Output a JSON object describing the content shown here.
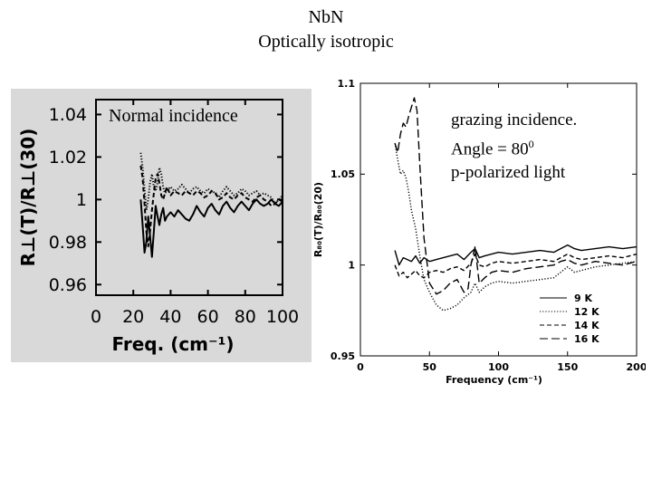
{
  "slide": {
    "title": "NbN",
    "subtitle": "Optically isotropic",
    "left_annotation": "Normal incidence",
    "right_annotation_line1": "grazing incidence.",
    "right_annotation_line2_prefix": "Angle = 80",
    "right_annotation_line2_sup": "0",
    "right_annotation_line3": "p-polarized light"
  },
  "chart_data": [
    {
      "type": "line",
      "title": "",
      "xlabel": "Freq. (cm⁻¹)",
      "ylabel": "R⊥(T)/R⊥(30)",
      "xlim": [
        0,
        100
      ],
      "ylim": [
        0.955,
        1.047
      ],
      "xticks": [
        0,
        20,
        40,
        60,
        80,
        100
      ],
      "yticks": [
        0.96,
        0.98,
        1,
        1.02,
        1.04
      ],
      "ytick_labels": [
        "0.96",
        "0.98",
        "1",
        "1.02",
        "1.04"
      ],
      "grid": false,
      "background": "#d9d9d9",
      "series": [
        {
          "style": "solid",
          "x": [
            24,
            25,
            26,
            27,
            28,
            29,
            30,
            31,
            32,
            33,
            34,
            35,
            36,
            37,
            38,
            40,
            42,
            44,
            46,
            48,
            50,
            52,
            54,
            56,
            58,
            60,
            62,
            64,
            66,
            68,
            70,
            72,
            74,
            76,
            78,
            80,
            82,
            84,
            86,
            88,
            90,
            92,
            94,
            96,
            98,
            100
          ],
          "y": [
            1.0,
            0.988,
            0.975,
            0.98,
            0.992,
            0.983,
            0.973,
            0.985,
            0.997,
            0.992,
            0.988,
            0.993,
            0.996,
            0.99,
            0.992,
            0.994,
            0.992,
            0.995,
            0.993,
            0.991,
            0.99,
            0.993,
            0.997,
            0.994,
            0.992,
            0.996,
            0.998,
            0.995,
            0.993,
            0.997,
            0.999,
            0.996,
            0.994,
            0.997,
            0.999,
            0.997,
            0.995,
            0.998,
            1.0,
            0.998,
            0.997,
            0.998,
            1.0,
            0.998,
            0.997,
            0.999
          ]
        },
        {
          "style": "dotted",
          "x": [
            24,
            25,
            26,
            27,
            28,
            29,
            30,
            31,
            32,
            33,
            34,
            35,
            36,
            37,
            38,
            40,
            42,
            44,
            46,
            48,
            50,
            52,
            54,
            56,
            58,
            60,
            62,
            64,
            66,
            68,
            70,
            72,
            74,
            76,
            78,
            80,
            82,
            84,
            86,
            88,
            90,
            92,
            94,
            96,
            98,
            100
          ],
          "y": [
            1.022,
            1.015,
            1.005,
            0.995,
            1.0,
            1.008,
            1.012,
            1.006,
            1.004,
            1.008,
            1.015,
            1.012,
            1.006,
            1.003,
            1.004,
            1.006,
            1.004,
            1.005,
            1.007,
            1.005,
            1.003,
            1.005,
            1.006,
            1.004,
            1.003,
            1.005,
            1.004,
            1.003,
            1.001,
            1.004,
            1.006,
            1.004,
            1.002,
            1.003,
            1.005,
            1.004,
            1.002,
            1.003,
            1.004,
            1.002,
            1.003,
            1.002,
            1.001,
            0.998,
            1.0,
            1.002
          ]
        },
        {
          "style": "dashed",
          "x": [
            24,
            25,
            26,
            27,
            28,
            29,
            30,
            31,
            32,
            33,
            34,
            35,
            36,
            37,
            38,
            40,
            42,
            44,
            46,
            48,
            50,
            52,
            54,
            56,
            58,
            60,
            62,
            64,
            66,
            68,
            70,
            72,
            74,
            76,
            78,
            80,
            82,
            84,
            86,
            88,
            90,
            92,
            94,
            96,
            98,
            100
          ],
          "y": [
            1.016,
            1.01,
            0.998,
            0.985,
            0.978,
            0.985,
            0.995,
            1.003,
            1.01,
            1.012,
            1.008,
            1.002,
            1.0,
            1.003,
            1.006,
            1.002,
            1.004,
            1.003,
            1.002,
            1.004,
            1.003,
            1.002,
            1.004,
            1.003,
            1.001,
            1.002,
            1.004,
            1.003,
            1.0,
            1.001,
            1.003,
            1.001,
            1.0,
            1.002,
            1.003,
            1.001,
            1.0,
            0.999,
            1.001,
            1.002,
            1.0,
            0.999,
            0.997,
            0.998,
            1.0,
            0.999
          ]
        }
      ]
    },
    {
      "type": "line",
      "title": "",
      "xlabel": "Frequency (cm⁻¹)",
      "ylabel": "R₈₀(T)/R₈₀(20)",
      "xlim": [
        0,
        200
      ],
      "ylim": [
        0.95,
        1.1
      ],
      "xticks": [
        0,
        50,
        100,
        150,
        200
      ],
      "yticks": [
        0.95,
        1,
        1.05,
        1.1
      ],
      "ytick_labels": [
        "0.95",
        "1",
        "1.05",
        "1.1"
      ],
      "grid": false,
      "legend_position": "bottom-right",
      "series": [
        {
          "name": "9 K",
          "style": "solid",
          "x": [
            25,
            28,
            31,
            34,
            37,
            40,
            43,
            46,
            50,
            55,
            60,
            65,
            70,
            75,
            80,
            83,
            86,
            90,
            95,
            100,
            110,
            120,
            130,
            140,
            145,
            150,
            155,
            160,
            170,
            180,
            190,
            200
          ],
          "y": [
            1.008,
            1.0,
            1.004,
            1.003,
            1.002,
            1.005,
            1.001,
            1.004,
            1.002,
            1.003,
            1.004,
            1.005,
            1.006,
            1.003,
            1.007,
            1.009,
            1.004,
            1.005,
            1.006,
            1.007,
            1.006,
            1.007,
            1.008,
            1.007,
            1.009,
            1.011,
            1.009,
            1.008,
            1.009,
            1.01,
            1.009,
            1.01
          ]
        },
        {
          "name": "12 K",
          "style": "dotted",
          "x": [
            25,
            27,
            29,
            31,
            33,
            35,
            37,
            40,
            43,
            46,
            50,
            55,
            60,
            65,
            70,
            75,
            80,
            83,
            86,
            90,
            95,
            100,
            110,
            120,
            130,
            140,
            145,
            150,
            155,
            160,
            170,
            180,
            190,
            200
          ],
          "y": [
            1.067,
            1.058,
            1.05,
            1.052,
            1.048,
            1.04,
            1.03,
            1.02,
            1.005,
            0.992,
            0.985,
            0.978,
            0.975,
            0.976,
            0.978,
            0.982,
            0.985,
            0.99,
            0.985,
            0.988,
            0.99,
            0.991,
            0.99,
            0.991,
            0.992,
            0.993,
            0.996,
            0.999,
            0.996,
            0.997,
            0.999,
            1.0,
            1.001,
            1.002
          ]
        },
        {
          "name": "14 K",
          "style": "dashed",
          "x": [
            25,
            28,
            31,
            34,
            37,
            40,
            43,
            46,
            50,
            55,
            60,
            65,
            70,
            75,
            80,
            83,
            86,
            90,
            95,
            100,
            110,
            120,
            130,
            140,
            145,
            150,
            155,
            160,
            170,
            180,
            190,
            200
          ],
          "y": [
            1.0,
            0.994,
            0.996,
            0.993,
            0.995,
            0.997,
            0.994,
            0.993,
            0.996,
            0.997,
            0.996,
            0.998,
            0.999,
            0.997,
            1.001,
            1.006,
            1.0,
            0.999,
            1.001,
            1.002,
            1.001,
            1.002,
            1.003,
            1.002,
            1.004,
            1.006,
            1.004,
            1.003,
            1.004,
            1.005,
            1.004,
            1.006
          ]
        },
        {
          "name": "16 K",
          "style": "long-dash",
          "x": [
            25,
            27,
            29,
            31,
            33,
            35,
            37,
            39,
            41,
            43,
            46,
            50,
            55,
            60,
            65,
            70,
            75,
            78,
            80,
            83,
            86,
            90,
            95,
            100,
            110,
            120,
            130,
            140,
            145,
            150,
            155,
            160,
            170,
            180,
            190,
            200
          ],
          "y": [
            1.067,
            1.062,
            1.072,
            1.078,
            1.076,
            1.082,
            1.087,
            1.092,
            1.085,
            1.055,
            1.015,
            0.99,
            0.984,
            0.986,
            0.99,
            0.992,
            0.985,
            0.987,
            1.0,
            1.01,
            0.99,
            0.993,
            0.996,
            0.997,
            0.996,
            0.998,
            0.999,
            1.0,
            1.002,
            1.003,
            1.001,
            1.0,
            1.002,
            1.001,
            1.0,
            1.002
          ]
        }
      ]
    }
  ]
}
